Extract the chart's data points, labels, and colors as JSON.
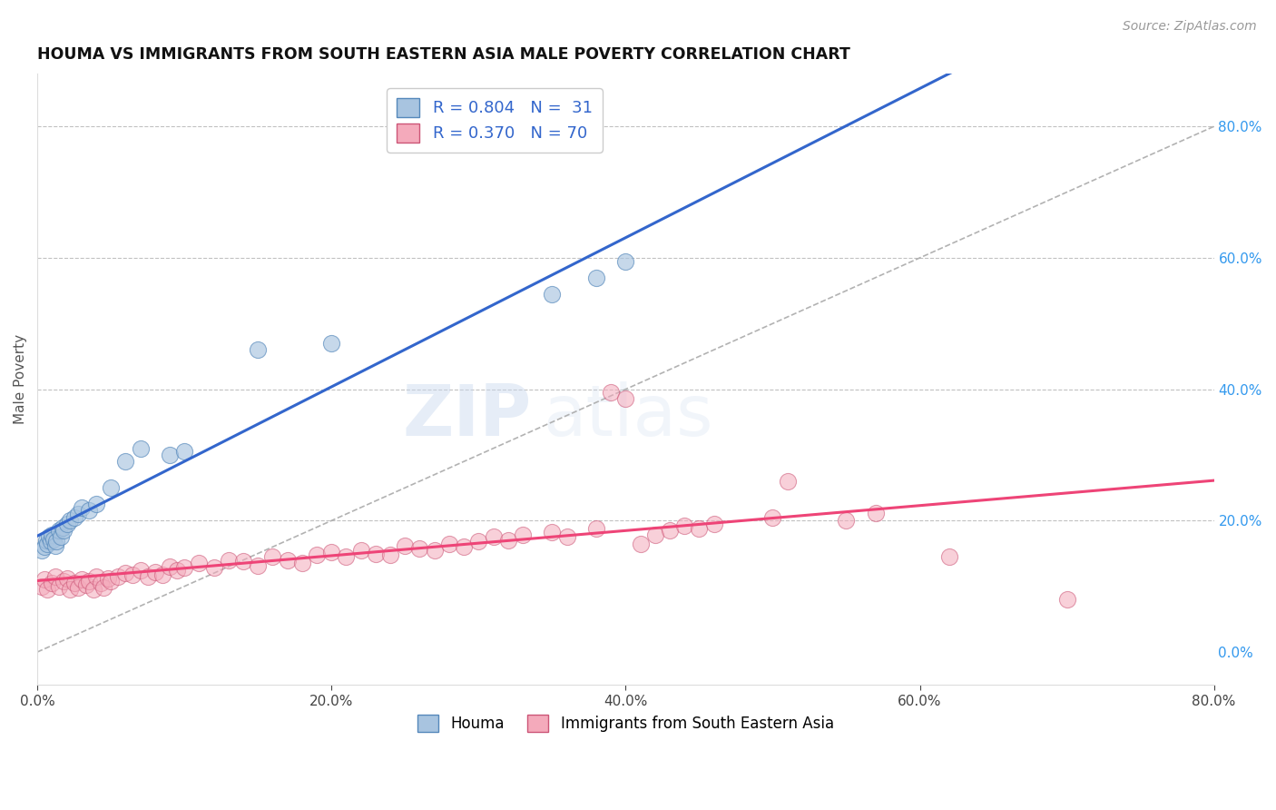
{
  "title": "HOUMA VS IMMIGRANTS FROM SOUTH EASTERN ASIA MALE POVERTY CORRELATION CHART",
  "source": "Source: ZipAtlas.com",
  "ylabel": "Male Poverty",
  "xlim": [
    0.0,
    0.8
  ],
  "ylim": [
    -0.05,
    0.88
  ],
  "right_yticks": [
    0.0,
    0.2,
    0.4,
    0.6,
    0.8
  ],
  "right_yticklabels": [
    "0.0%",
    "20.0%",
    "40.0%",
    "60.0%",
    "80.0%"
  ],
  "xticks": [
    0.0,
    0.2,
    0.4,
    0.6,
    0.8
  ],
  "xticklabels": [
    "0.0%",
    "20.0%",
    "40.0%",
    "60.0%",
    "80.0%"
  ],
  "houma_color": "#A8C4E0",
  "houma_edge": "#5588BB",
  "immigrants_color": "#F4AABB",
  "immigrants_edge": "#CC5577",
  "regression_blue": "#3366CC",
  "regression_pink": "#EE4477",
  "legend_R1": "R = 0.804",
  "legend_N1": "N =  31",
  "legend_R2": "R = 0.370",
  "legend_N2": "N = 70",
  "houma_x": [
    0.003,
    0.005,
    0.006,
    0.007,
    0.008,
    0.009,
    0.01,
    0.011,
    0.012,
    0.013,
    0.015,
    0.016,
    0.017,
    0.018,
    0.02,
    0.022,
    0.025,
    0.028,
    0.03,
    0.035,
    0.04,
    0.05,
    0.06,
    0.07,
    0.09,
    0.1,
    0.15,
    0.2,
    0.35,
    0.38,
    0.4
  ],
  "houma_y": [
    0.155,
    0.16,
    0.17,
    0.165,
    0.175,
    0.168,
    0.178,
    0.172,
    0.162,
    0.168,
    0.185,
    0.175,
    0.19,
    0.185,
    0.195,
    0.2,
    0.205,
    0.21,
    0.22,
    0.215,
    0.225,
    0.25,
    0.29,
    0.31,
    0.3,
    0.305,
    0.46,
    0.47,
    0.545,
    0.57,
    0.595
  ],
  "immigrants_x": [
    0.003,
    0.005,
    0.007,
    0.01,
    0.012,
    0.015,
    0.018,
    0.02,
    0.022,
    0.025,
    0.028,
    0.03,
    0.033,
    0.035,
    0.038,
    0.04,
    0.043,
    0.045,
    0.048,
    0.05,
    0.055,
    0.06,
    0.065,
    0.07,
    0.075,
    0.08,
    0.085,
    0.09,
    0.095,
    0.1,
    0.11,
    0.12,
    0.13,
    0.14,
    0.15,
    0.16,
    0.17,
    0.18,
    0.19,
    0.2,
    0.21,
    0.22,
    0.23,
    0.24,
    0.25,
    0.26,
    0.27,
    0.28,
    0.29,
    0.3,
    0.31,
    0.32,
    0.33,
    0.35,
    0.36,
    0.38,
    0.39,
    0.4,
    0.41,
    0.42,
    0.43,
    0.44,
    0.45,
    0.46,
    0.5,
    0.51,
    0.55,
    0.57,
    0.62,
    0.7
  ],
  "immigrants_y": [
    0.1,
    0.11,
    0.095,
    0.105,
    0.115,
    0.1,
    0.108,
    0.112,
    0.095,
    0.105,
    0.098,
    0.11,
    0.102,
    0.108,
    0.095,
    0.115,
    0.105,
    0.098,
    0.112,
    0.108,
    0.115,
    0.12,
    0.118,
    0.125,
    0.115,
    0.122,
    0.118,
    0.13,
    0.125,
    0.128,
    0.135,
    0.128,
    0.14,
    0.138,
    0.132,
    0.145,
    0.14,
    0.135,
    0.148,
    0.152,
    0.145,
    0.155,
    0.15,
    0.148,
    0.162,
    0.158,
    0.155,
    0.165,
    0.16,
    0.168,
    0.175,
    0.17,
    0.178,
    0.182,
    0.175,
    0.188,
    0.395,
    0.385,
    0.165,
    0.178,
    0.185,
    0.192,
    0.188,
    0.195,
    0.205,
    0.26,
    0.2,
    0.212,
    0.145,
    0.08
  ],
  "watermark_zip": "ZIP",
  "watermark_atlas": "atlas",
  "background_color": "#FFFFFF",
  "grid_color": "#BBBBBB"
}
